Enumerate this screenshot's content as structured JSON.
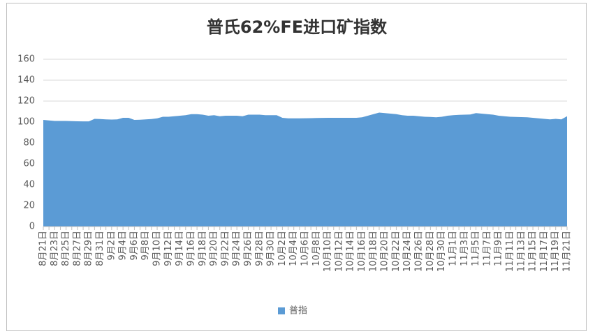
{
  "chart_data": {
    "type": "area",
    "title": "普氏62%FE进口矿指数",
    "categories": [
      "8月21日",
      null,
      "8月23日",
      null,
      "8月25日",
      null,
      "8月27日",
      null,
      "8月29日",
      null,
      "8月31日",
      null,
      "9月2日",
      null,
      "9月4日",
      null,
      "9月6日",
      null,
      "9月8日",
      null,
      "9月10日",
      null,
      "9月12日",
      null,
      "9月14日",
      null,
      "9月16日",
      null,
      "9月18日",
      null,
      "9月20日",
      null,
      "9月22日",
      null,
      "9月24日",
      null,
      "9月26日",
      null,
      "9月28日",
      null,
      "9月30日",
      null,
      "10月2日",
      null,
      "10月4日",
      null,
      "10月6日",
      null,
      "10月8日",
      null,
      "10月10日",
      null,
      "10月12日",
      null,
      "10月14日",
      null,
      "10月16日",
      null,
      "10月18日",
      null,
      "10月20日",
      null,
      "10月22日",
      null,
      "10月24日",
      null,
      "10月26日",
      null,
      "10月28日",
      null,
      "10月30日",
      null,
      "11月1日",
      null,
      "11月3日",
      null,
      "11月5日",
      null,
      "11月7日",
      null,
      "11月9日",
      null,
      "11月11日",
      null,
      "11月13日",
      null,
      "11月15日",
      null,
      "11月17日",
      null,
      "11月19日",
      null,
      "11月21日"
    ],
    "series": [
      {
        "name": "普指",
        "color": "#5b9bd5",
        "values": [
          102,
          101.5,
          101,
          101,
          101,
          100.8,
          100.7,
          100.6,
          100.6,
          103,
          102.8,
          102.5,
          102.3,
          102.5,
          104,
          104,
          102,
          102.2,
          102.5,
          102.8,
          103.5,
          105,
          105,
          105.5,
          106,
          106.5,
          107.5,
          107.5,
          107,
          106,
          106.5,
          105.5,
          106,
          106,
          106,
          105.5,
          107,
          107,
          107,
          106.5,
          106.5,
          106.5,
          104,
          103.5,
          103.5,
          103.5,
          103.6,
          103.7,
          103.8,
          103.9,
          104,
          104,
          104,
          104,
          104,
          104,
          104.5,
          106,
          107.5,
          109,
          108.5,
          108,
          107.5,
          106.5,
          106,
          106,
          105.5,
          105,
          104.8,
          104.5,
          105,
          106,
          106.5,
          106.8,
          107,
          107.2,
          108.5,
          108,
          107.5,
          107,
          106,
          105.5,
          105,
          104.8,
          104.7,
          104.5,
          104,
          103.5,
          103,
          102.5,
          103,
          102.5,
          105.5
        ]
      }
    ],
    "ylim": [
      0,
      160
    ],
    "yticks": [
      0,
      20,
      40,
      60,
      80,
      100,
      120,
      140,
      160
    ],
    "grid": true,
    "legend": "bottom"
  }
}
